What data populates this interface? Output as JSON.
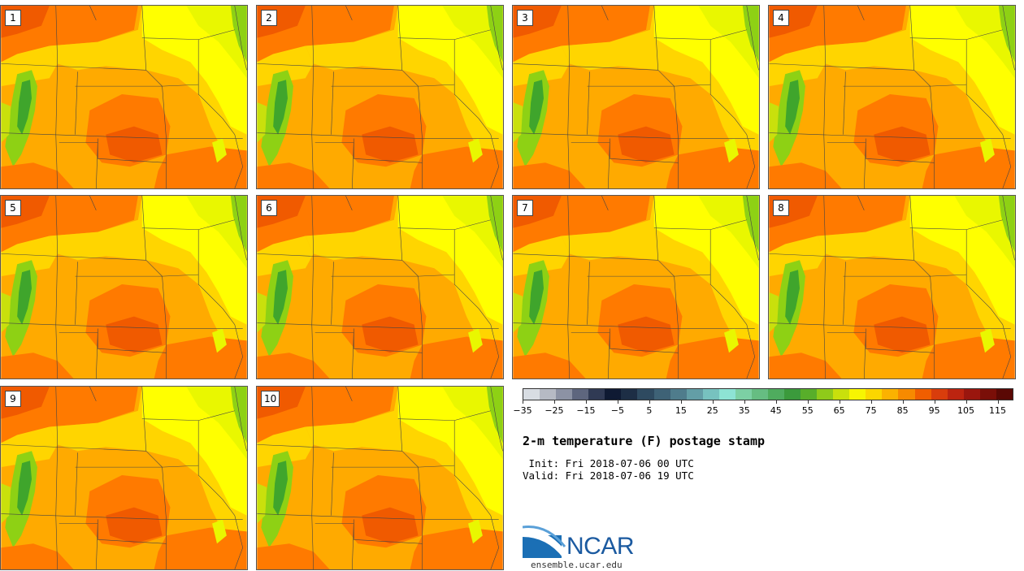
{
  "panels": [
    {
      "label": "1"
    },
    {
      "label": "2"
    },
    {
      "label": "3"
    },
    {
      "label": "4"
    },
    {
      "label": "5"
    },
    {
      "label": "6"
    },
    {
      "label": "7"
    },
    {
      "label": "8"
    },
    {
      "label": "9"
    },
    {
      "label": "10"
    }
  ],
  "colorbar": {
    "colors": [
      "#d8dde3",
      "#b6bac4",
      "#8c92a4",
      "#5e667e",
      "#303a54",
      "#0f1a33",
      "#1d2e45",
      "#2e4a60",
      "#3e6276",
      "#4f7c8c",
      "#639ea6",
      "#77c2bf",
      "#8de3d4",
      "#7cd0a4",
      "#66bd82",
      "#4fac5e",
      "#3b9a3c",
      "#58ae2a",
      "#8fca1a",
      "#c9e00c",
      "#f7f502",
      "#fbd600",
      "#fbb200",
      "#f78a00",
      "#f05e00",
      "#d93d0c",
      "#bc2410",
      "#9a160e",
      "#7a0f08",
      "#5a0804"
    ],
    "tick_values": [
      -35,
      -25,
      -15,
      -5,
      5,
      15,
      25,
      35,
      45,
      55,
      65,
      75,
      85,
      95,
      105,
      115
    ],
    "tick_labels": [
      "−35",
      "−25",
      "−15",
      "−5",
      "5",
      "15",
      "25",
      "35",
      "45",
      "55",
      "65",
      "75",
      "85",
      "95",
      "105",
      "115"
    ],
    "min": -35,
    "max": 120
  },
  "title": "2-m temperature (F) postage stamp",
  "init": " Init: Fri 2018-07-06 00 UTC",
  "valid": "Valid: Fri 2018-07-06 19 UTC",
  "logo_text": "NCAR",
  "site": "ensemble.ucar.edu",
  "colors": {
    "yellow": "#ffff00",
    "lightyellow": "#e9f700",
    "gold": "#ffd500",
    "orange": "#ffaa00",
    "darkorange": "#ff7a00",
    "redorange": "#f05a00",
    "green": "#3fa52c",
    "lightgreen": "#8ed114",
    "border": "#444444"
  }
}
